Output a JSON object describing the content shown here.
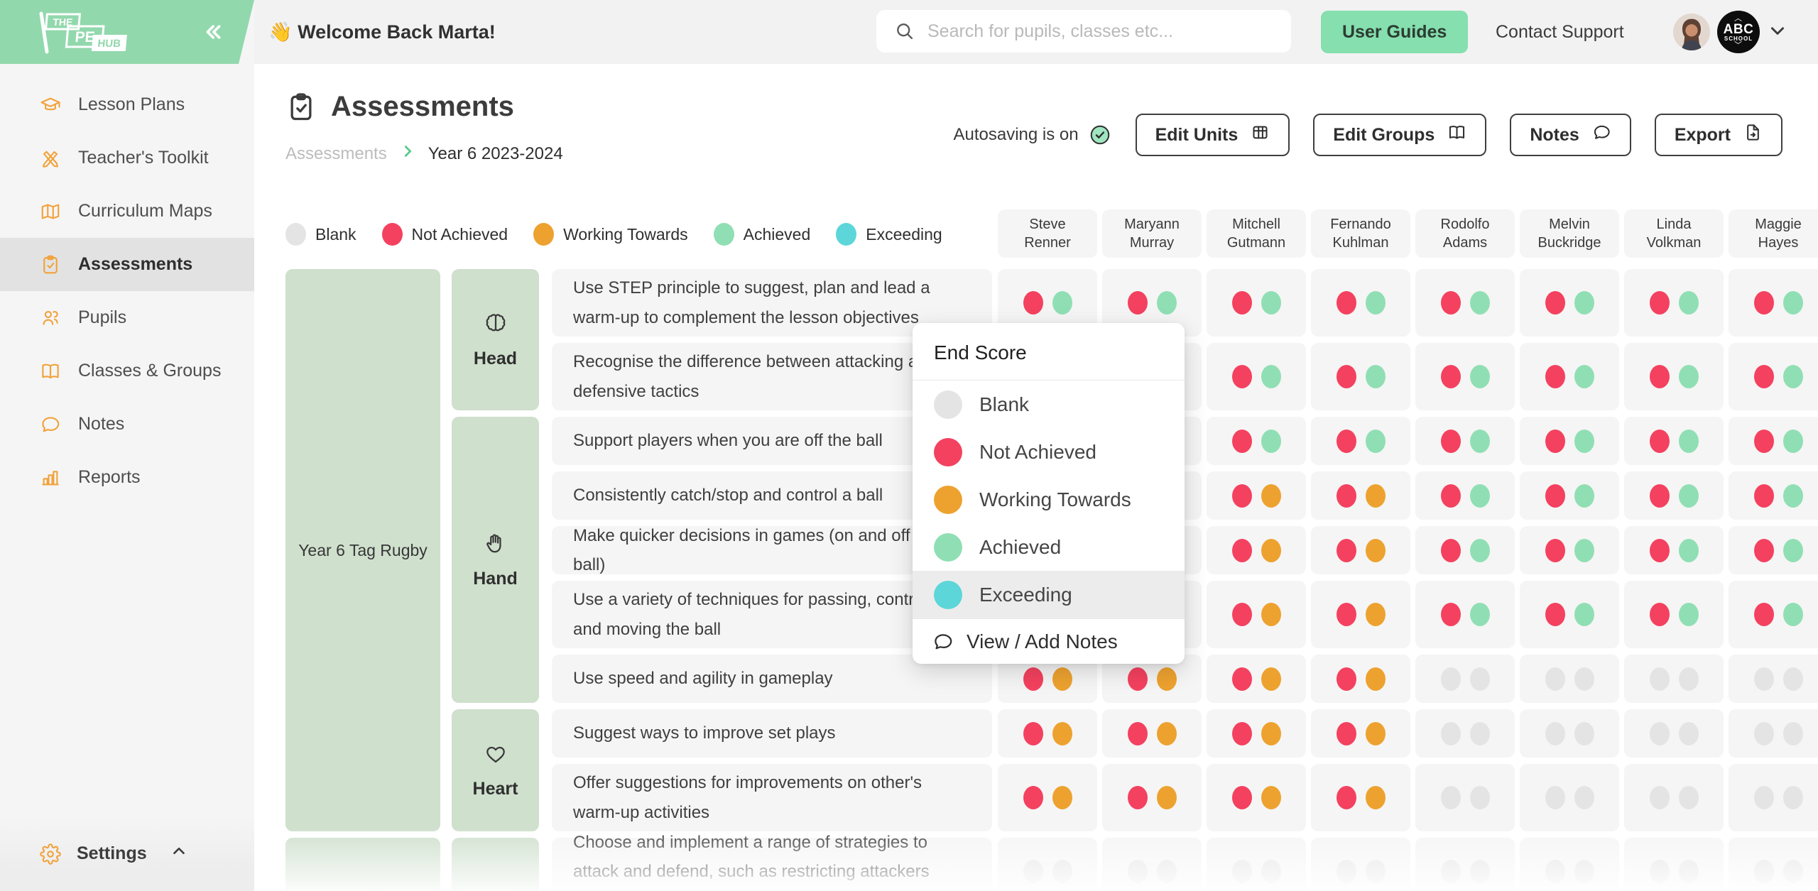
{
  "logo": {
    "the": "THE",
    "pe": "PE",
    "hub": "HUB"
  },
  "topbar": {
    "welcome": "👋 Welcome Back Marta!",
    "search_placeholder": "Search for pupils, classes etc...",
    "user_guides": "User Guides",
    "contact_support": "Contact Support",
    "badge_abc": "ABC",
    "badge_school": "SCHOOL"
  },
  "sidebar": {
    "items": [
      {
        "label": "Lesson Plans",
        "icon": "graduation-cap-icon",
        "active": false
      },
      {
        "label": "Teacher's Toolkit",
        "icon": "pencils-icon",
        "active": false
      },
      {
        "label": "Curriculum Maps",
        "icon": "map-icon",
        "active": false
      },
      {
        "label": "Assessments",
        "icon": "clipboard-check-icon",
        "active": true
      },
      {
        "label": "Pupils",
        "icon": "pupils-icon",
        "active": false
      },
      {
        "label": "Classes & Groups",
        "icon": "book-icon",
        "active": false
      },
      {
        "label": "Notes",
        "icon": "chat-icon",
        "active": false
      },
      {
        "label": "Reports",
        "icon": "chart-icon",
        "active": false
      }
    ],
    "settings_label": "Settings"
  },
  "page": {
    "title": "Assessments",
    "breadcrumb": [
      "Assessments",
      "Year 6 2023-2024"
    ],
    "autosave_label": "Autosaving is on",
    "actions": [
      {
        "label": "Edit Units",
        "icon": "grid-icon"
      },
      {
        "label": "Edit Groups",
        "icon": "book-icon"
      },
      {
        "label": "Notes",
        "icon": "chat-icon"
      },
      {
        "label": "Export",
        "icon": "export-icon"
      }
    ]
  },
  "legend": [
    {
      "label": "Blank",
      "score": "blank"
    },
    {
      "label": "Not Achieved",
      "score": "na"
    },
    {
      "label": "Working Towards",
      "score": "wt"
    },
    {
      "label": "Achieved",
      "score": "a"
    },
    {
      "label": "Exceeding",
      "score": "ex"
    }
  ],
  "students": [
    {
      "first": "Steve",
      "last": "Renner"
    },
    {
      "first": "Maryann",
      "last": "Murray"
    },
    {
      "first": "Mitchell",
      "last": "Gutmann"
    },
    {
      "first": "Fernando",
      "last": "Kuhlman"
    },
    {
      "first": "Rodolfo",
      "last": "Adams"
    },
    {
      "first": "Melvin",
      "last": "Buckridge"
    },
    {
      "first": "Linda",
      "last": "Volkman"
    },
    {
      "first": "Maggie",
      "last": "Hayes"
    }
  ],
  "units": [
    {
      "name": "Year 6 Tag Rugby",
      "sections": [
        {
          "name": "Head",
          "icon": "brain-icon",
          "rows": 2
        },
        {
          "name": "Hand",
          "icon": "hand-icon",
          "rows": 5
        },
        {
          "name": "Heart",
          "icon": "heart-icon",
          "rows": 2
        }
      ]
    },
    {
      "name": "",
      "sections": [
        {
          "name": "",
          "icon": "",
          "rows": 1
        }
      ]
    }
  ],
  "rows": [
    {
      "text": "Use STEP principle to suggest, plan and lead a warm-up to complement the lesson objectives",
      "lines": 2,
      "scores": [
        [
          "na",
          "a"
        ],
        [
          "na",
          "a"
        ],
        [
          "na",
          "a"
        ],
        [
          "na",
          "a"
        ],
        [
          "na",
          "a"
        ],
        [
          "na",
          "a"
        ],
        [
          "na",
          "a"
        ],
        [
          "na",
          "a"
        ]
      ]
    },
    {
      "text": "Recognise the difference between attacking and defensive tactics",
      "lines": 2,
      "scores": [
        [
          "na",
          "a"
        ],
        [
          "na",
          "a"
        ],
        [
          "na",
          "a"
        ],
        [
          "na",
          "a"
        ],
        [
          "na",
          "a"
        ],
        [
          "na",
          "a"
        ],
        [
          "na",
          "a"
        ],
        [
          "na",
          "a"
        ]
      ]
    },
    {
      "text": "Support players when you are off the ball",
      "lines": 1,
      "scores": [
        [
          "na",
          "a"
        ],
        [
          "na",
          "a"
        ],
        [
          "na",
          "a"
        ],
        [
          "na",
          "a"
        ],
        [
          "na",
          "a"
        ],
        [
          "na",
          "a"
        ],
        [
          "na",
          "a"
        ],
        [
          "na",
          "a"
        ]
      ]
    },
    {
      "text": "Consistently catch/stop and control a ball",
      "lines": 1,
      "scores": [
        [
          "na",
          "wt"
        ],
        [
          "na",
          "wt"
        ],
        [
          "na",
          "wt"
        ],
        [
          "na",
          "wt"
        ],
        [
          "na",
          "a"
        ],
        [
          "na",
          "a"
        ],
        [
          "na",
          "a"
        ],
        [
          "na",
          "a"
        ]
      ]
    },
    {
      "text": "Make quicker decisions in games (on and off the ball)",
      "lines": 1,
      "scores": [
        [
          "na",
          "wt"
        ],
        [
          "na",
          "wt"
        ],
        [
          "na",
          "wt"
        ],
        [
          "na",
          "wt"
        ],
        [
          "na",
          "a"
        ],
        [
          "na",
          "a"
        ],
        [
          "na",
          "a"
        ],
        [
          "na",
          "a"
        ]
      ]
    },
    {
      "text": "Use a variety of techniques for passing, controlling and moving the ball",
      "lines": 2,
      "scores": [
        [
          "na",
          "wt"
        ],
        [
          "na",
          "wt"
        ],
        [
          "na",
          "wt"
        ],
        [
          "na",
          "wt"
        ],
        [
          "na",
          "a"
        ],
        [
          "na",
          "a"
        ],
        [
          "na",
          "a"
        ],
        [
          "na",
          "a"
        ]
      ]
    },
    {
      "text": "Use speed and agility in gameplay",
      "lines": 1,
      "scores": [
        [
          "na",
          "wt"
        ],
        [
          "na",
          "wt"
        ],
        [
          "na",
          "wt"
        ],
        [
          "na",
          "wt"
        ],
        [
          "blank",
          "blank"
        ],
        [
          "blank",
          "blank"
        ],
        [
          "blank",
          "blank"
        ],
        [
          "blank",
          "blank"
        ]
      ]
    },
    {
      "text": "Suggest ways to improve set plays",
      "lines": 1,
      "scores": [
        [
          "na",
          "wt"
        ],
        [
          "na",
          "wt"
        ],
        [
          "na",
          "wt"
        ],
        [
          "na",
          "wt"
        ],
        [
          "blank",
          "blank"
        ],
        [
          "blank",
          "blank"
        ],
        [
          "blank",
          "blank"
        ],
        [
          "blank",
          "blank"
        ]
      ]
    },
    {
      "text": "Offer suggestions for improvements on other's warm-up activities",
      "lines": 2,
      "scores": [
        [
          "na",
          "wt"
        ],
        [
          "na",
          "wt"
        ],
        [
          "na",
          "wt"
        ],
        [
          "na",
          "wt"
        ],
        [
          "blank",
          "blank"
        ],
        [
          "blank",
          "blank"
        ],
        [
          "blank",
          "blank"
        ],
        [
          "blank",
          "blank"
        ]
      ]
    },
    {
      "text": "Choose and implement a range of strategies to attack and defend, such as restricting attackers space or goal",
      "lines": 2,
      "scores": [
        [
          "blank",
          "blank"
        ],
        [
          "blank",
          "blank"
        ],
        [
          "blank",
          "blank"
        ],
        [
          "blank",
          "blank"
        ],
        [
          "blank",
          "blank"
        ],
        [
          "blank",
          "blank"
        ],
        [
          "blank",
          "blank"
        ],
        [
          "blank",
          "blank"
        ]
      ]
    }
  ],
  "popup": {
    "title": "End Score",
    "options": [
      {
        "label": "Blank",
        "score": "blank",
        "selected": false
      },
      {
        "label": "Not Achieved",
        "score": "na",
        "selected": false
      },
      {
        "label": "Working Towards",
        "score": "wt",
        "selected": false
      },
      {
        "label": "Achieved",
        "score": "a",
        "selected": false
      },
      {
        "label": "Exceeding",
        "score": "ex",
        "selected": true
      }
    ],
    "notes_label": "View / Add Notes"
  },
  "colors": {
    "brand_green": "#92d8ad",
    "button_green": "#85dfae",
    "cell_green": "#cfe0cd",
    "score_colors": {
      "blank": "#e4e4e4",
      "na": "#f4415f",
      "wt": "#eda22f",
      "a": "#90dfb4",
      "ex": "#5cd6d9"
    }
  }
}
